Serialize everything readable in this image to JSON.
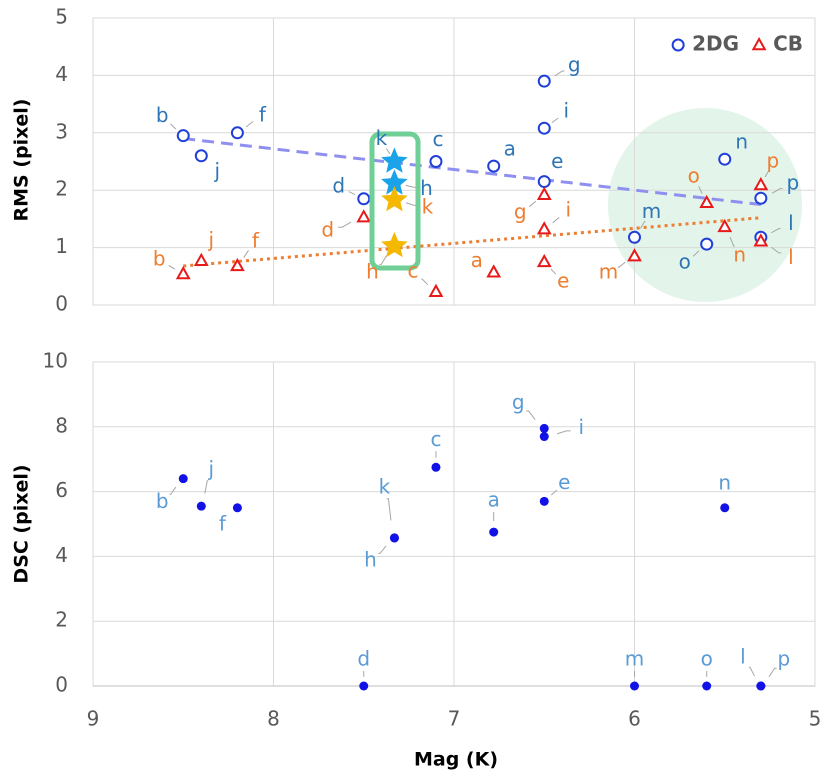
{
  "chart_data": [
    {
      "type": "scatter",
      "ylabel": "RMS (pixel)",
      "xlim": [
        9,
        5
      ],
      "xticks": [
        9,
        8,
        7,
        6,
        5
      ],
      "ylim": [
        0,
        5
      ],
      "yticks": [
        0,
        1,
        2,
        3,
        4,
        5
      ],
      "grid": true,
      "legend": "upper right",
      "series": [
        {
          "name": "2DG",
          "color": "#1f3fd8",
          "marker": "circle",
          "label_color": "#2e75b6",
          "star_color": "#1aa3e8",
          "labels": [
            "b",
            "j",
            "f",
            "d",
            "k",
            "h",
            "c",
            "a",
            "g",
            "i",
            "e",
            "m",
            "o",
            "n",
            "p",
            "l"
          ],
          "x": [
            8.5,
            8.4,
            8.2,
            7.5,
            7.33,
            7.33,
            7.1,
            6.78,
            6.5,
            6.5,
            6.5,
            6.0,
            5.6,
            5.5,
            5.3,
            5.3
          ],
          "values": [
            2.95,
            2.6,
            3.0,
            1.85,
            2.5,
            2.12,
            2.5,
            2.42,
            3.9,
            3.08,
            2.15,
            1.18,
            1.06,
            2.54,
            1.86,
            1.18
          ],
          "markers": [
            "circle",
            "circle",
            "circle",
            "circle",
            "star",
            "star",
            "circle",
            "circle",
            "circle",
            "circle",
            "circle",
            "circle",
            "circle",
            "circle",
            "circle",
            "circle"
          ],
          "trend": {
            "x": [
              8.5,
              5.3
            ],
            "values": [
              2.9,
              1.75
            ],
            "color": "#8f8ff0",
            "style": "dashed"
          }
        },
        {
          "name": "CB",
          "color": "#e8191a",
          "marker": "triangle",
          "label_color": "#ed7d31",
          "star_color": "#f5b800",
          "labels": [
            "b",
            "j",
            "f",
            "d",
            "k",
            "h",
            "c",
            "a",
            "g",
            "i",
            "e",
            "m",
            "o",
            "n",
            "p",
            "l"
          ],
          "x": [
            8.5,
            8.4,
            8.2,
            7.5,
            7.33,
            7.33,
            7.1,
            6.78,
            6.5,
            6.5,
            6.5,
            6.0,
            5.6,
            5.5,
            5.3,
            5.3
          ],
          "values": [
            0.54,
            0.77,
            0.68,
            1.53,
            1.83,
            1.03,
            0.23,
            0.57,
            1.92,
            1.32,
            0.75,
            0.85,
            1.78,
            1.36,
            2.09,
            1.11
          ],
          "markers": [
            "triangle",
            "triangle",
            "triangle",
            "triangle",
            "star",
            "star",
            "triangle",
            "triangle",
            "triangle",
            "triangle",
            "triangle",
            "triangle",
            "triangle",
            "triangle",
            "triangle",
            "triangle"
          ],
          "trend": {
            "x": [
              8.5,
              5.3
            ],
            "values": [
              0.68,
              1.52
            ],
            "color": "#ed7d31",
            "style": "dotted"
          }
        }
      ]
    },
    {
      "type": "scatter",
      "ylabel": "DSC (pixel)",
      "xlabel": "Mag (K)",
      "xlim": [
        9,
        5
      ],
      "xticks": [
        9,
        8,
        7,
        6,
        5
      ],
      "ylim": [
        0,
        10
      ],
      "yticks": [
        0,
        2,
        4,
        6,
        8,
        10
      ],
      "grid": true,
      "series": [
        {
          "color": "#1212e6",
          "marker": "dot",
          "label_color": "#5b9bd5",
          "labels": [
            "b",
            "j",
            "f",
            "d",
            "k",
            "h",
            "c",
            "a",
            "g",
            "i",
            "e",
            "m",
            "o",
            "n",
            "p",
            "l"
          ],
          "x": [
            8.5,
            8.4,
            8.2,
            7.5,
            7.33,
            7.33,
            7.1,
            6.78,
            6.5,
            6.5,
            6.5,
            6.0,
            5.6,
            5.5,
            5.3,
            5.3
          ],
          "values": [
            6.4,
            5.55,
            5.5,
            0,
            4.57,
            4.57,
            6.75,
            4.75,
            7.95,
            7.7,
            5.7,
            0,
            0,
            5.5,
            0,
            0
          ]
        }
      ]
    }
  ]
}
